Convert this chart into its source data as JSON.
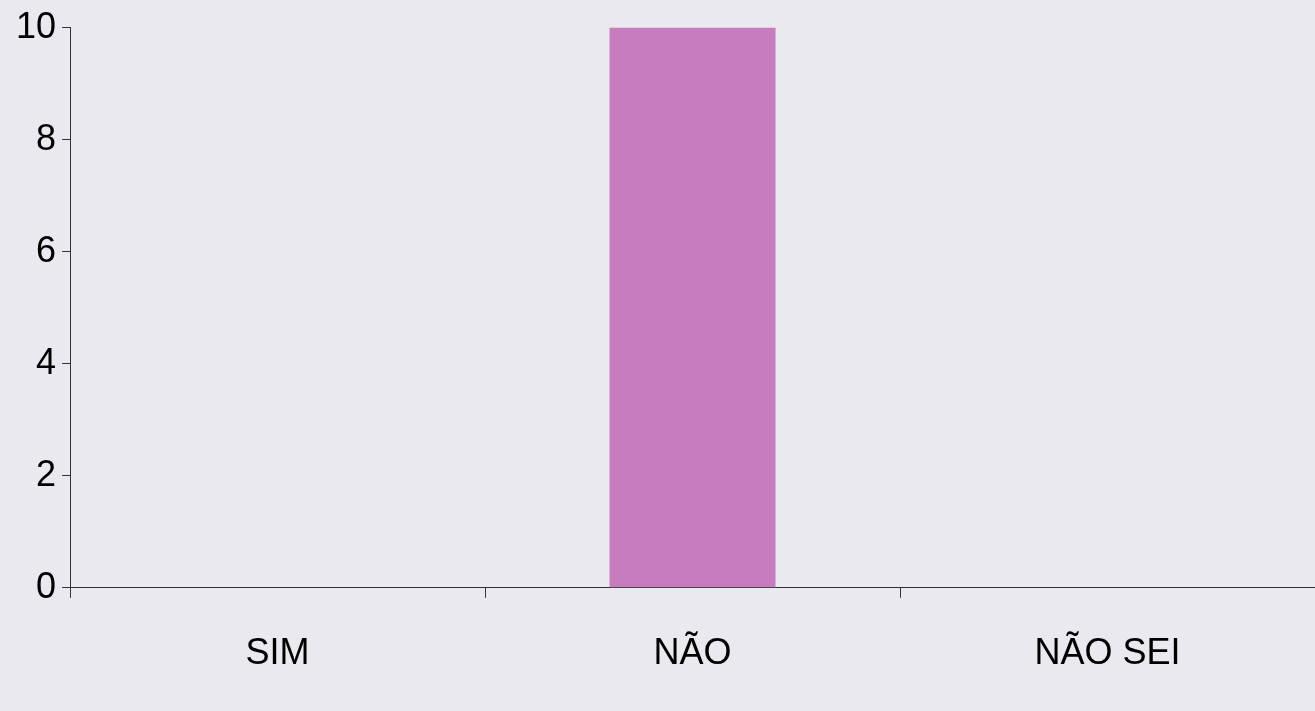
{
  "chart_data": {
    "type": "bar",
    "categories": [
      "SIM",
      "NÃO",
      "NÃO SEI"
    ],
    "values": [
      0,
      10,
      0
    ],
    "color": "#c77dbd",
    "ylim": [
      0,
      10
    ],
    "yticks": [
      0,
      2,
      4,
      6,
      8,
      10
    ],
    "grid": false,
    "legend": false
  }
}
